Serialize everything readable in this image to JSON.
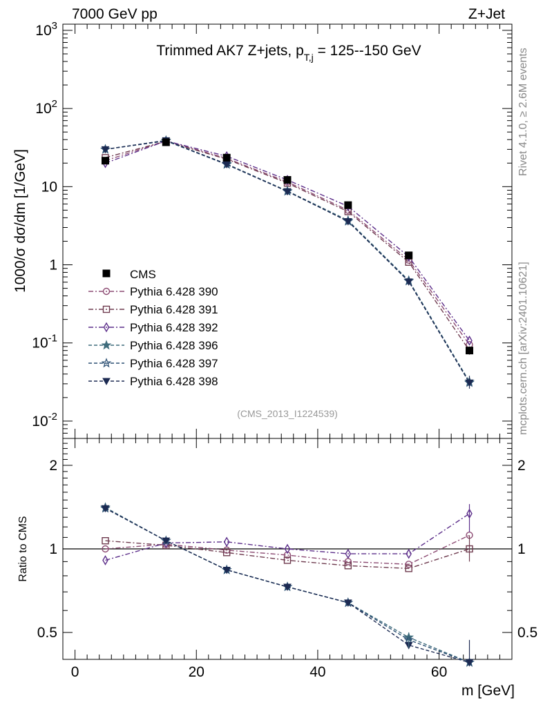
{
  "header": {
    "energy_label": "7000 GeV pp",
    "process_label": "Z+Jet",
    "rivet_label": "Rivet 4.1.0, ≥ 2.6M events",
    "mcplots_label": "mcplots.cern.ch [arXiv:2401.10621]"
  },
  "chart_data": [
    {
      "type": "line",
      "role": "main",
      "title": "Trimmed AK7 Z+jets, p_T,j = 125--150 GeV",
      "title_parts": {
        "pre": "Trimmed AK7 Z+jets, p",
        "sub": "T,j",
        "post": " = 125--150 GeV"
      },
      "ylabel": "1000/σ  dσ/dm [1/GeV]",
      "yscale": "log",
      "ylim": [
        0.006,
        1200
      ],
      "xlim": [
        -2,
        72
      ],
      "ytick_labels": [
        "10^-2",
        "10^-1",
        "1",
        "10",
        "10^2",
        "10^3"
      ],
      "analysis_label": "(CMS_2013_I1224539)",
      "x": [
        5,
        15,
        25,
        35,
        45,
        55,
        65
      ],
      "data": {
        "name": "CMS",
        "values": [
          21.5,
          37,
          23.5,
          12.2,
          5.8,
          1.32,
          0.08
        ]
      },
      "series": [
        {
          "name": "Pythia 6.428 390",
          "color": "#8c4a72",
          "marker": "circle",
          "dash": "dashdot",
          "values": [
            21.5,
            38.5,
            23,
            11.5,
            5.0,
            1.15,
            0.095
          ]
        },
        {
          "name": "Pythia 6.428 391",
          "color": "#6e3a4e",
          "marker": "square",
          "dash": "dashdot",
          "values": [
            23.5,
            38,
            22.5,
            11.1,
            4.8,
            1.08,
            0.08
          ]
        },
        {
          "name": "Pythia 6.428 392",
          "color": "#5c2e8a",
          "marker": "diamond",
          "dash": "dashdot",
          "values": [
            20,
            38.5,
            24.5,
            12.2,
            5.6,
            1.27,
            0.107
          ]
        },
        {
          "name": "Pythia 6.428 396",
          "color": "#3f6c7c",
          "marker": "star",
          "dash": "dash",
          "values": [
            30,
            39,
            19.5,
            8.8,
            3.7,
            0.63,
            0.032
          ]
        },
        {
          "name": "Pythia 6.428 397",
          "color": "#2a4e72",
          "marker": "star-open",
          "dash": "dash",
          "values": [
            30,
            38.5,
            19.2,
            8.7,
            3.6,
            0.62,
            0.031
          ]
        },
        {
          "name": "Pythia 6.428 398",
          "color": "#1c2a52",
          "marker": "triangle-down",
          "dash": "dash",
          "values": [
            30,
            39,
            19.3,
            8.7,
            3.6,
            0.61,
            0.031
          ]
        }
      ]
    },
    {
      "type": "line",
      "role": "ratio",
      "xlabel": "m [GeV]",
      "ylabel": "Ratio to CMS",
      "yscale": "log",
      "ylim": [
        0.4,
        2.5
      ],
      "xlim": [
        -2,
        72
      ],
      "ytick_labels": [
        "0.5",
        "1",
        "2"
      ],
      "xtick_labels": [
        "0",
        "20",
        "40",
        "60"
      ],
      "x": [
        5,
        15,
        25,
        35,
        45,
        55,
        65
      ],
      "series": [
        {
          "name": "Pythia 6.428 390",
          "values": [
            1.0,
            1.04,
            0.99,
            0.95,
            0.9,
            0.88,
            1.12
          ]
        },
        {
          "name": "Pythia 6.428 391",
          "values": [
            1.07,
            1.03,
            0.97,
            0.91,
            0.87,
            0.85,
            1.0
          ]
        },
        {
          "name": "Pythia 6.428 392",
          "values": [
            0.91,
            1.05,
            1.06,
            1.0,
            0.96,
            0.96,
            1.34
          ]
        },
        {
          "name": "Pythia 6.428 396",
          "values": [
            1.41,
            1.07,
            0.84,
            0.73,
            0.64,
            0.48,
            0.39
          ]
        },
        {
          "name": "Pythia 6.428 397",
          "values": [
            1.4,
            1.07,
            0.84,
            0.73,
            0.64,
            0.47,
            0.39
          ]
        },
        {
          "name": "Pythia 6.428 398",
          "values": [
            1.4,
            1.07,
            0.84,
            0.73,
            0.64,
            0.45,
            0.39
          ]
        }
      ]
    }
  ]
}
